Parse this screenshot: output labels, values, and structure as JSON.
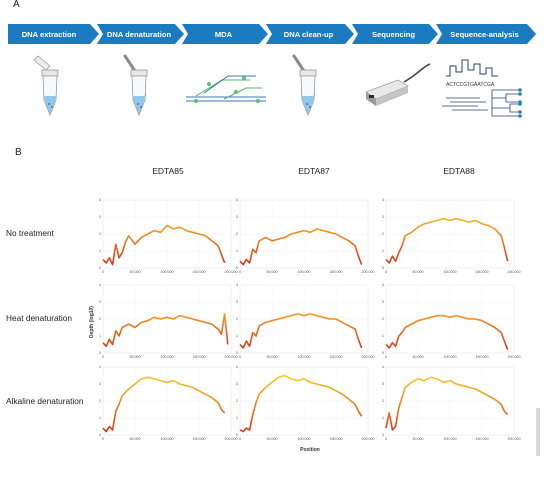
{
  "panel_a": {
    "letter": "A"
  },
  "panel_b": {
    "letter": "B"
  },
  "pipeline": {
    "steps": [
      {
        "label": "DNA extraction",
        "icon": "tube-icon"
      },
      {
        "label": "DNA denaturation",
        "icon": "pipette-tube-icon"
      },
      {
        "label": "MDA",
        "icon": "amplification-strands-icon"
      },
      {
        "label": "DNA clean-up",
        "icon": "pipette-tube-icon"
      },
      {
        "label": "Sequencing",
        "icon": "sequencer-icon"
      },
      {
        "label": "Sequence-analysis",
        "icon": "phylogeny-icon"
      }
    ],
    "sequence_text": "ACTCCGTGAATCGA",
    "arrow_color": "#1a7bc0"
  },
  "chart_data": {
    "type": "line",
    "columns": [
      "EDTA85",
      "EDTA87",
      "EDTA88"
    ],
    "rows": [
      "No treatment",
      "Heat denaturation",
      "Alkaline denaturation"
    ],
    "xlabel": "Position",
    "ylabel": "Depth (log10)",
    "xlim": [
      0,
      200000
    ],
    "ylim": [
      0,
      4
    ],
    "x_ticks": [
      0,
      50000,
      100000,
      150000,
      200000
    ],
    "x_tick_labels": [
      "0",
      "50,000",
      "100,000",
      "150,000",
      "200,000"
    ],
    "y_ticks": [
      0,
      1,
      2,
      3,
      4
    ],
    "color_low": "#d62817",
    "color_high": "#f7e02a",
    "grid": true,
    "panels": [
      {
        "column": "EDTA85",
        "row": "No treatment",
        "x": [
          0,
          5000,
          10000,
          15000,
          20000,
          25000,
          30000,
          35000,
          40000,
          50000,
          60000,
          70000,
          80000,
          90000,
          100000,
          110000,
          120000,
          130000,
          140000,
          150000,
          160000,
          170000,
          180000,
          185000,
          190000
        ],
        "y": [
          0.5,
          0.3,
          0.6,
          0.2,
          1.4,
          0.6,
          0.9,
          1.5,
          1.9,
          1.4,
          1.8,
          2.0,
          2.2,
          2.1,
          2.5,
          2.3,
          2.4,
          2.2,
          2.1,
          2.0,
          1.9,
          1.6,
          1.3,
          0.8,
          0.3
        ]
      },
      {
        "column": "EDTA87",
        "row": "No treatment",
        "x": [
          0,
          5000,
          10000,
          15000,
          20000,
          25000,
          30000,
          40000,
          50000,
          60000,
          70000,
          80000,
          90000,
          100000,
          110000,
          120000,
          130000,
          140000,
          150000,
          160000,
          170000,
          180000,
          185000,
          190000
        ],
        "y": [
          0.4,
          0.2,
          0.5,
          0.3,
          1.1,
          0.9,
          1.6,
          1.8,
          1.6,
          1.7,
          1.8,
          2.0,
          2.1,
          2.2,
          2.1,
          2.3,
          2.2,
          2.1,
          2.0,
          1.8,
          1.6,
          1.3,
          0.7,
          0.2
        ]
      },
      {
        "column": "EDTA88",
        "row": "No treatment",
        "x": [
          0,
          5000,
          10000,
          15000,
          20000,
          25000,
          30000,
          40000,
          50000,
          60000,
          70000,
          80000,
          90000,
          100000,
          110000,
          120000,
          130000,
          140000,
          150000,
          160000,
          170000,
          180000,
          185000,
          190000
        ],
        "y": [
          0.5,
          0.3,
          0.7,
          0.4,
          0.9,
          1.3,
          1.9,
          2.1,
          2.4,
          2.6,
          2.7,
          2.8,
          2.9,
          2.8,
          2.9,
          2.8,
          2.7,
          2.8,
          2.6,
          2.5,
          2.3,
          1.9,
          1.2,
          0.4
        ]
      },
      {
        "column": "EDTA85",
        "row": "Heat denaturation",
        "x": [
          0,
          5000,
          10000,
          15000,
          20000,
          25000,
          30000,
          40000,
          50000,
          60000,
          70000,
          80000,
          90000,
          100000,
          110000,
          120000,
          130000,
          140000,
          150000,
          160000,
          170000,
          180000,
          185000,
          190000,
          195000
        ],
        "y": [
          0.6,
          0.4,
          0.8,
          0.5,
          1.3,
          1.0,
          1.5,
          1.7,
          1.5,
          1.8,
          1.9,
          2.1,
          2.0,
          2.1,
          2.0,
          2.2,
          2.1,
          2.0,
          1.9,
          1.8,
          1.7,
          1.4,
          1.1,
          2.3,
          0.5
        ]
      },
      {
        "column": "EDTA87",
        "row": "Heat denaturation",
        "x": [
          0,
          5000,
          10000,
          15000,
          20000,
          25000,
          30000,
          40000,
          50000,
          60000,
          70000,
          80000,
          90000,
          100000,
          110000,
          120000,
          130000,
          140000,
          150000,
          160000,
          170000,
          180000,
          185000,
          190000
        ],
        "y": [
          0.5,
          0.3,
          0.7,
          0.4,
          1.2,
          1.0,
          1.6,
          1.8,
          1.9,
          2.0,
          2.1,
          2.2,
          2.3,
          2.2,
          2.3,
          2.2,
          2.1,
          2.0,
          2.0,
          1.8,
          1.6,
          1.4,
          0.8,
          0.3
        ]
      },
      {
        "column": "EDTA88",
        "row": "Heat denaturation",
        "x": [
          0,
          5000,
          10000,
          15000,
          20000,
          25000,
          30000,
          40000,
          50000,
          60000,
          70000,
          80000,
          90000,
          100000,
          110000,
          120000,
          130000,
          140000,
          150000,
          160000,
          170000,
          180000,
          185000,
          190000
        ],
        "y": [
          0.5,
          0.3,
          0.6,
          0.4,
          1.0,
          1.2,
          1.5,
          1.7,
          1.9,
          2.0,
          2.1,
          2.2,
          2.2,
          2.1,
          2.2,
          2.1,
          2.0,
          2.0,
          1.9,
          1.7,
          1.5,
          1.2,
          0.7,
          0.2
        ]
      },
      {
        "column": "EDTA85",
        "row": "Alkaline denaturation",
        "x": [
          0,
          5000,
          10000,
          15000,
          20000,
          25000,
          30000,
          40000,
          50000,
          60000,
          70000,
          80000,
          90000,
          100000,
          110000,
          120000,
          130000,
          140000,
          150000,
          160000,
          170000,
          180000,
          185000,
          190000
        ],
        "y": [
          0.4,
          0.2,
          0.5,
          0.3,
          1.4,
          1.8,
          2.3,
          2.7,
          3.0,
          3.3,
          3.4,
          3.3,
          3.2,
          3.1,
          3.2,
          3.0,
          2.9,
          2.8,
          2.6,
          2.4,
          2.2,
          1.9,
          1.5,
          1.3
        ]
      },
      {
        "column": "EDTA87",
        "row": "Alkaline denaturation",
        "x": [
          0,
          5000,
          10000,
          15000,
          20000,
          25000,
          30000,
          40000,
          50000,
          60000,
          70000,
          80000,
          90000,
          100000,
          110000,
          120000,
          130000,
          140000,
          150000,
          160000,
          170000,
          180000,
          185000,
          190000
        ],
        "y": [
          0.3,
          0.2,
          0.4,
          0.3,
          1.2,
          1.9,
          2.4,
          2.8,
          3.1,
          3.4,
          3.5,
          3.3,
          3.2,
          3.3,
          3.1,
          3.0,
          2.9,
          2.8,
          2.6,
          2.4,
          2.1,
          1.8,
          1.4,
          1.1
        ]
      },
      {
        "column": "EDTA88",
        "row": "Alkaline denaturation",
        "x": [
          0,
          5000,
          10000,
          15000,
          20000,
          25000,
          30000,
          40000,
          50000,
          60000,
          70000,
          80000,
          90000,
          100000,
          110000,
          120000,
          130000,
          140000,
          150000,
          160000,
          170000,
          180000,
          185000,
          190000
        ],
        "y": [
          0.4,
          1.3,
          0.3,
          0.5,
          1.6,
          2.2,
          2.8,
          3.1,
          3.3,
          3.2,
          3.4,
          3.3,
          3.1,
          3.2,
          3.0,
          2.9,
          2.8,
          2.7,
          2.5,
          2.3,
          2.1,
          1.8,
          1.4,
          1.2
        ]
      }
    ]
  }
}
